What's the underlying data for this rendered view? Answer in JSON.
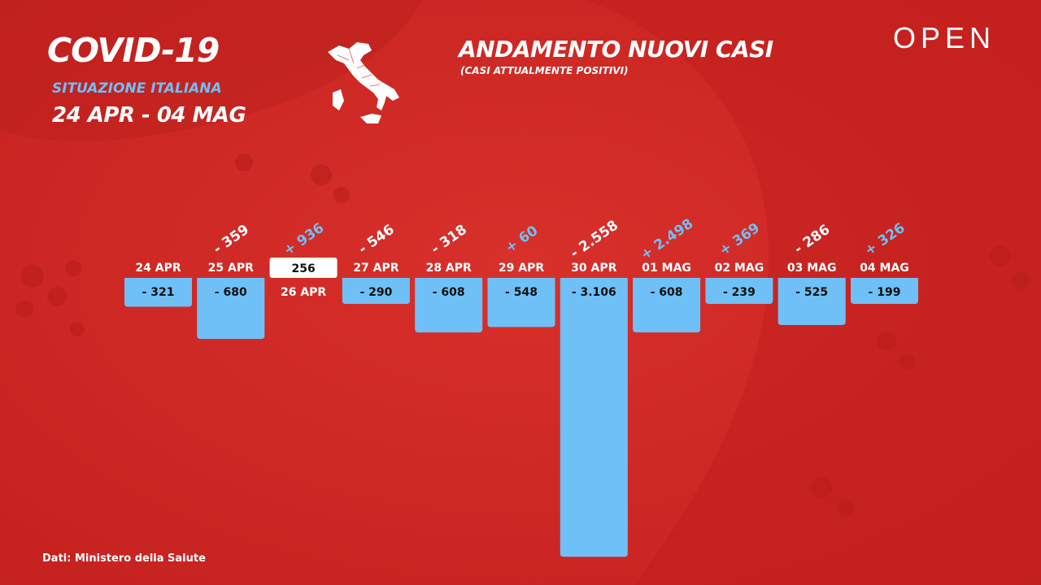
{
  "header": {
    "title": "COVID-19",
    "subtitle": "SITUAZIONE ITALIANA",
    "date_range": "24 APR - 04 MAG"
  },
  "chart_title": "ANDAMENTO NUOVI CASI",
  "chart_subtitle": "(CASI ATTUALMENTE POSITIVI)",
  "brand": "OPEN",
  "source": "Dati: Ministero della Salute",
  "colors": {
    "background": "#d42a26",
    "bar": "#6fc0f6",
    "positive_diff": "#6fc0f6",
    "negative_diff": "#ffffff"
  },
  "icons": {
    "map": "italy-map-icon"
  },
  "chart_data": {
    "type": "bar",
    "title": "ANDAMENTO NUOVI CASI",
    "subtitle": "(CASI ATTUALMENTE POSITIVI)",
    "categories": [
      "24 APR",
      "25 APR",
      "26 APR",
      "27 APR",
      "28 APR",
      "29 APR",
      "30 APR",
      "01 MAG",
      "02 MAG",
      "03 MAG",
      "04 MAG"
    ],
    "values": [
      -321,
      -680,
      256,
      -290,
      -608,
      -548,
      -3106,
      -608,
      -239,
      -525,
      -199
    ],
    "value_labels": [
      "- 321",
      "- 680",
      "256",
      "- 290",
      "- 608",
      "- 548",
      "- 3.106",
      "- 608",
      "- 239",
      "- 525",
      "- 199"
    ],
    "change_labels": [
      "",
      "- 359",
      "+ 936",
      "- 546",
      "- 318",
      "+ 60",
      "- 2.558",
      "+ 2.498",
      "+ 369",
      "- 286",
      "+ 326"
    ],
    "change_values": [
      null,
      -359,
      936,
      -546,
      -318,
      60,
      -2558,
      2498,
      369,
      -286,
      326
    ]
  }
}
